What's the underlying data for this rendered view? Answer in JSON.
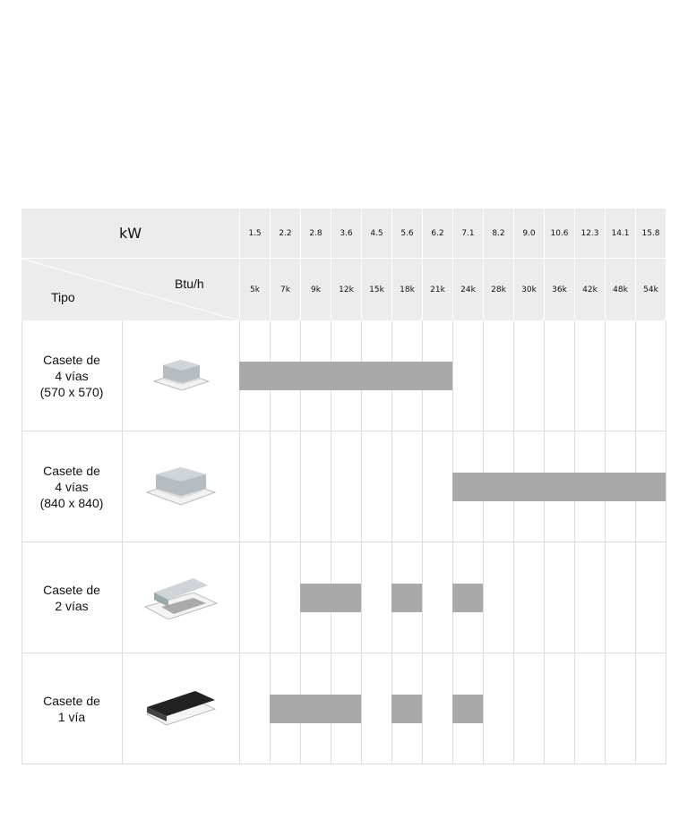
{
  "header": {
    "kw_label": "kW",
    "btu_label": "Btu/h",
    "type_label": "Tipo"
  },
  "chart_data": {
    "type": "table",
    "xlabel": "kW",
    "categories_kw": [
      "1.5",
      "2.2",
      "2.8",
      "3.6",
      "4.5",
      "5.6",
      "6.2",
      "7.1",
      "8.2",
      "9.0",
      "10.6",
      "12.3",
      "14.1",
      "15.8"
    ],
    "categories_btu": [
      "5k",
      "7k",
      "9k",
      "12k",
      "15k",
      "18k",
      "21k",
      "24k",
      "28k",
      "30k",
      "36k",
      "42k",
      "48k",
      "54k"
    ],
    "series": [
      {
        "name": "Casete de\n4 vías\n(570 x 570)",
        "icon": "cassette-4way-compact-icon",
        "available_kw": [
          "1.5",
          "2.2",
          "2.8",
          "3.6",
          "4.5",
          "5.6",
          "6.2"
        ]
      },
      {
        "name": "Casete de\n4 vías\n(840 x 840)",
        "icon": "cassette-4way-large-icon",
        "available_kw": [
          "7.1",
          "8.2",
          "9.0",
          "10.6",
          "12.3",
          "14.1",
          "15.8"
        ]
      },
      {
        "name": "Casete de\n2 vías",
        "icon": "cassette-2way-icon",
        "available_kw": [
          "2.8",
          "3.6",
          "5.6",
          "7.1"
        ]
      },
      {
        "name": "Casete de\n1 vía",
        "icon": "cassette-1way-icon",
        "available_kw": [
          "2.2",
          "2.8",
          "3.6",
          "5.6",
          "7.1"
        ]
      }
    ],
    "bar_color": "#a9a9a9",
    "header_bg": "#ececec"
  }
}
